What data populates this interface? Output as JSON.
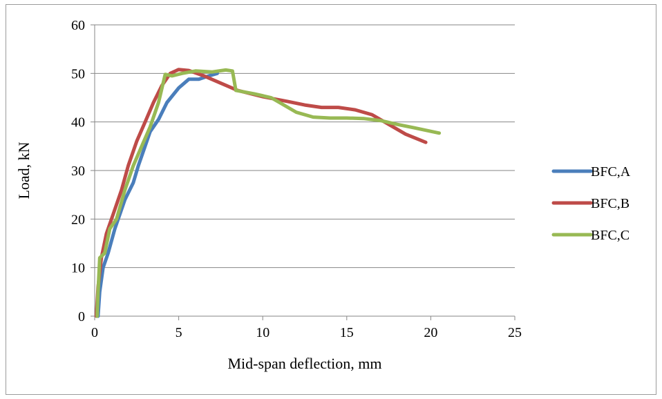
{
  "chart_data": {
    "type": "line",
    "title": "",
    "xlabel": "Mid-span deflection, mm",
    "ylabel": "Load, kN",
    "xlim": [
      0,
      25
    ],
    "ylim": [
      0,
      60
    ],
    "x_ticks": [
      0,
      5,
      10,
      15,
      20,
      25
    ],
    "y_ticks": [
      0,
      10,
      20,
      30,
      40,
      50,
      60
    ],
    "grid": "horizontal major",
    "legend": "right",
    "series": [
      {
        "name": "BFC,A",
        "color": "#4a7ebb",
        "points": [
          [
            0.2,
            0
          ],
          [
            0.3,
            5
          ],
          [
            0.5,
            10
          ],
          [
            0.8,
            13
          ],
          [
            1.2,
            18
          ],
          [
            1.8,
            24
          ],
          [
            2.3,
            27.5
          ],
          [
            2.6,
            31
          ],
          [
            3.0,
            35
          ],
          [
            3.3,
            38
          ],
          [
            3.8,
            40.5
          ],
          [
            4.3,
            44
          ],
          [
            5.0,
            47
          ],
          [
            5.6,
            48.8
          ],
          [
            6.2,
            48.8
          ],
          [
            6.8,
            49.5
          ],
          [
            7.3,
            50
          ]
        ]
      },
      {
        "name": "BFC,B",
        "color": "#be4b48",
        "points": [
          [
            0.1,
            0
          ],
          [
            0.2,
            6
          ],
          [
            0.4,
            12
          ],
          [
            0.7,
            17
          ],
          [
            1.1,
            21
          ],
          [
            1.6,
            26
          ],
          [
            2.0,
            31
          ],
          [
            2.5,
            36
          ],
          [
            3.0,
            40
          ],
          [
            3.5,
            44
          ],
          [
            4.0,
            47.5
          ],
          [
            4.5,
            50
          ],
          [
            5.0,
            50.8
          ],
          [
            5.6,
            50.6
          ],
          [
            6.5,
            49.5
          ],
          [
            7.5,
            48
          ],
          [
            8.5,
            46.5
          ],
          [
            10.0,
            45.2
          ],
          [
            11.5,
            44.2
          ],
          [
            12.5,
            43.5
          ],
          [
            13.5,
            43
          ],
          [
            14.5,
            43
          ],
          [
            15.5,
            42.5
          ],
          [
            16.5,
            41.5
          ],
          [
            17.5,
            39.5
          ],
          [
            18.5,
            37.5
          ],
          [
            19.7,
            35.8
          ]
        ]
      },
      {
        "name": "BFC,C",
        "color": "#98b954",
        "points": [
          [
            0.15,
            0
          ],
          [
            0.2,
            5
          ],
          [
            0.3,
            12
          ],
          [
            0.6,
            13
          ],
          [
            0.9,
            18
          ],
          [
            1.3,
            20
          ],
          [
            1.8,
            26
          ],
          [
            2.3,
            31
          ],
          [
            2.8,
            35
          ],
          [
            3.3,
            39
          ],
          [
            3.8,
            44
          ],
          [
            4.2,
            49.8
          ],
          [
            4.6,
            49.5
          ],
          [
            5.2,
            50
          ],
          [
            6.0,
            50.5
          ],
          [
            7.0,
            50.3
          ],
          [
            7.8,
            50.7
          ],
          [
            8.2,
            50.5
          ],
          [
            8.4,
            46.5
          ],
          [
            9.5,
            45.8
          ],
          [
            10.5,
            45
          ],
          [
            11.0,
            44
          ],
          [
            12.0,
            42
          ],
          [
            13.0,
            41
          ],
          [
            14.0,
            40.8
          ],
          [
            15.0,
            40.8
          ],
          [
            16.0,
            40.7
          ],
          [
            17.0,
            40.3
          ],
          [
            18.0,
            39.5
          ],
          [
            19.0,
            38.8
          ],
          [
            20.5,
            37.7
          ]
        ]
      }
    ]
  }
}
